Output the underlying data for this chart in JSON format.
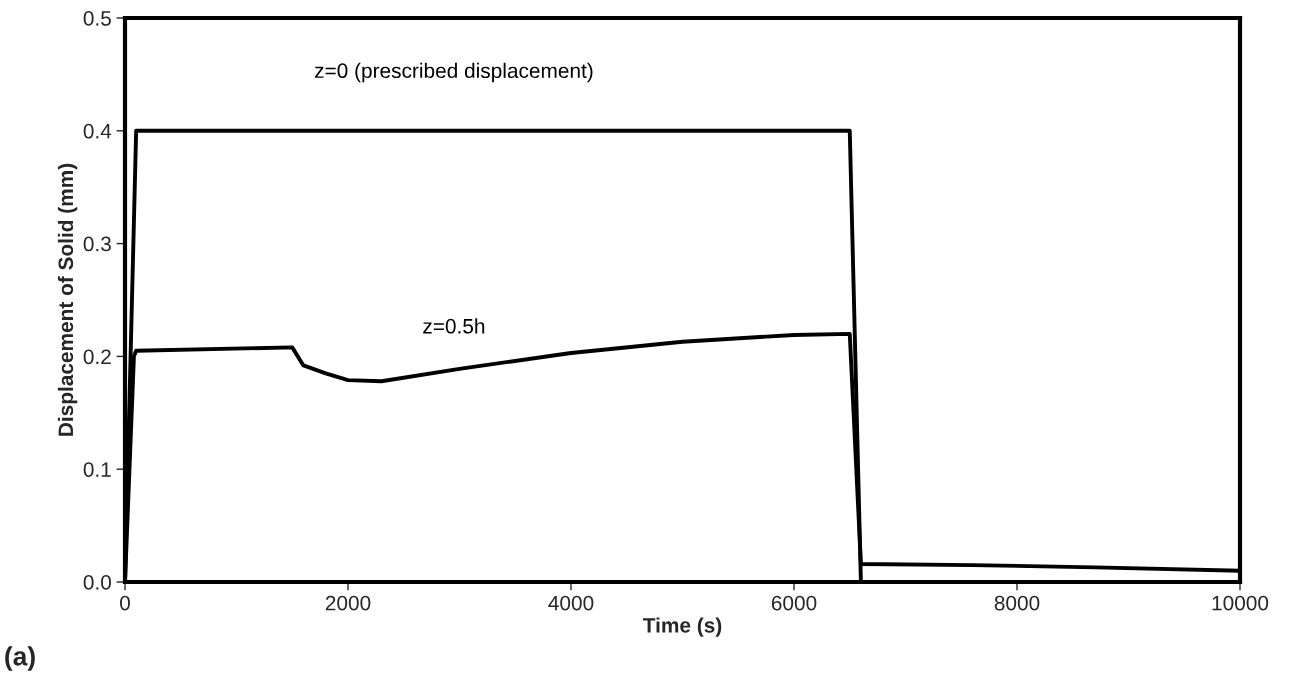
{
  "chart_data": {
    "type": "line",
    "xlabel": "Time (s)",
    "ylabel": "Displacement of Solid (mm)",
    "xlim": [
      0,
      10000
    ],
    "xticks": [
      0,
      2000,
      4000,
      6000,
      8000,
      10000
    ],
    "ylim": [
      0,
      0.5
    ],
    "yticks": [
      {
        "value": 0,
        "label": "0.0"
      },
      0.1,
      0.2,
      0.3,
      0.4,
      0.5
    ],
    "grid": false,
    "legend": false,
    "marker": "none",
    "line_style": "solid",
    "series": [
      {
        "name": "z=0 (prescribed displacement)",
        "color": "#000000",
        "x": [
          0,
          100,
          6500,
          6600,
          10000
        ],
        "values": [
          0,
          0.4,
          0.4,
          0.0,
          0.0
        ]
      },
      {
        "name": "z=0.5h",
        "color": "#000000",
        "x": [
          0,
          80,
          100,
          1500,
          1600,
          1800,
          2000,
          2300,
          3000,
          4000,
          5000,
          6000,
          6500,
          6600,
          7600,
          8700,
          10000
        ],
        "values": [
          0,
          0.2,
          0.205,
          0.208,
          0.192,
          0.185,
          0.179,
          0.178,
          0.189,
          0.203,
          0.213,
          0.219,
          0.22,
          0.016,
          0.015,
          0.013,
          0.01
        ]
      }
    ],
    "annotations": [
      "(a)"
    ]
  }
}
